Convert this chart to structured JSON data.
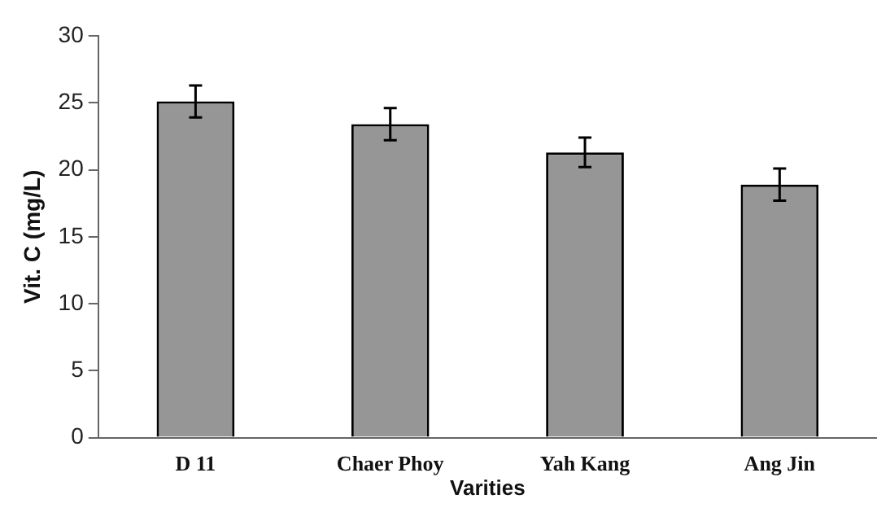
{
  "chart_data": {
    "type": "bar",
    "xlabel": "Varities",
    "ylabel": "Vit. C (mg/L)",
    "categories": [
      "D 11",
      "Chaer Phoy",
      "Yah Kang",
      "Ang Jin"
    ],
    "values": [
      25.1,
      23.4,
      21.3,
      18.9
    ],
    "errors": [
      1.2,
      1.2,
      1.1,
      1.2
    ],
    "color": "#969696",
    "ylim": [
      0,
      30
    ],
    "yticks": [
      0,
      5,
      10,
      15,
      20,
      25,
      30
    ],
    "grid": false,
    "legend": false
  }
}
